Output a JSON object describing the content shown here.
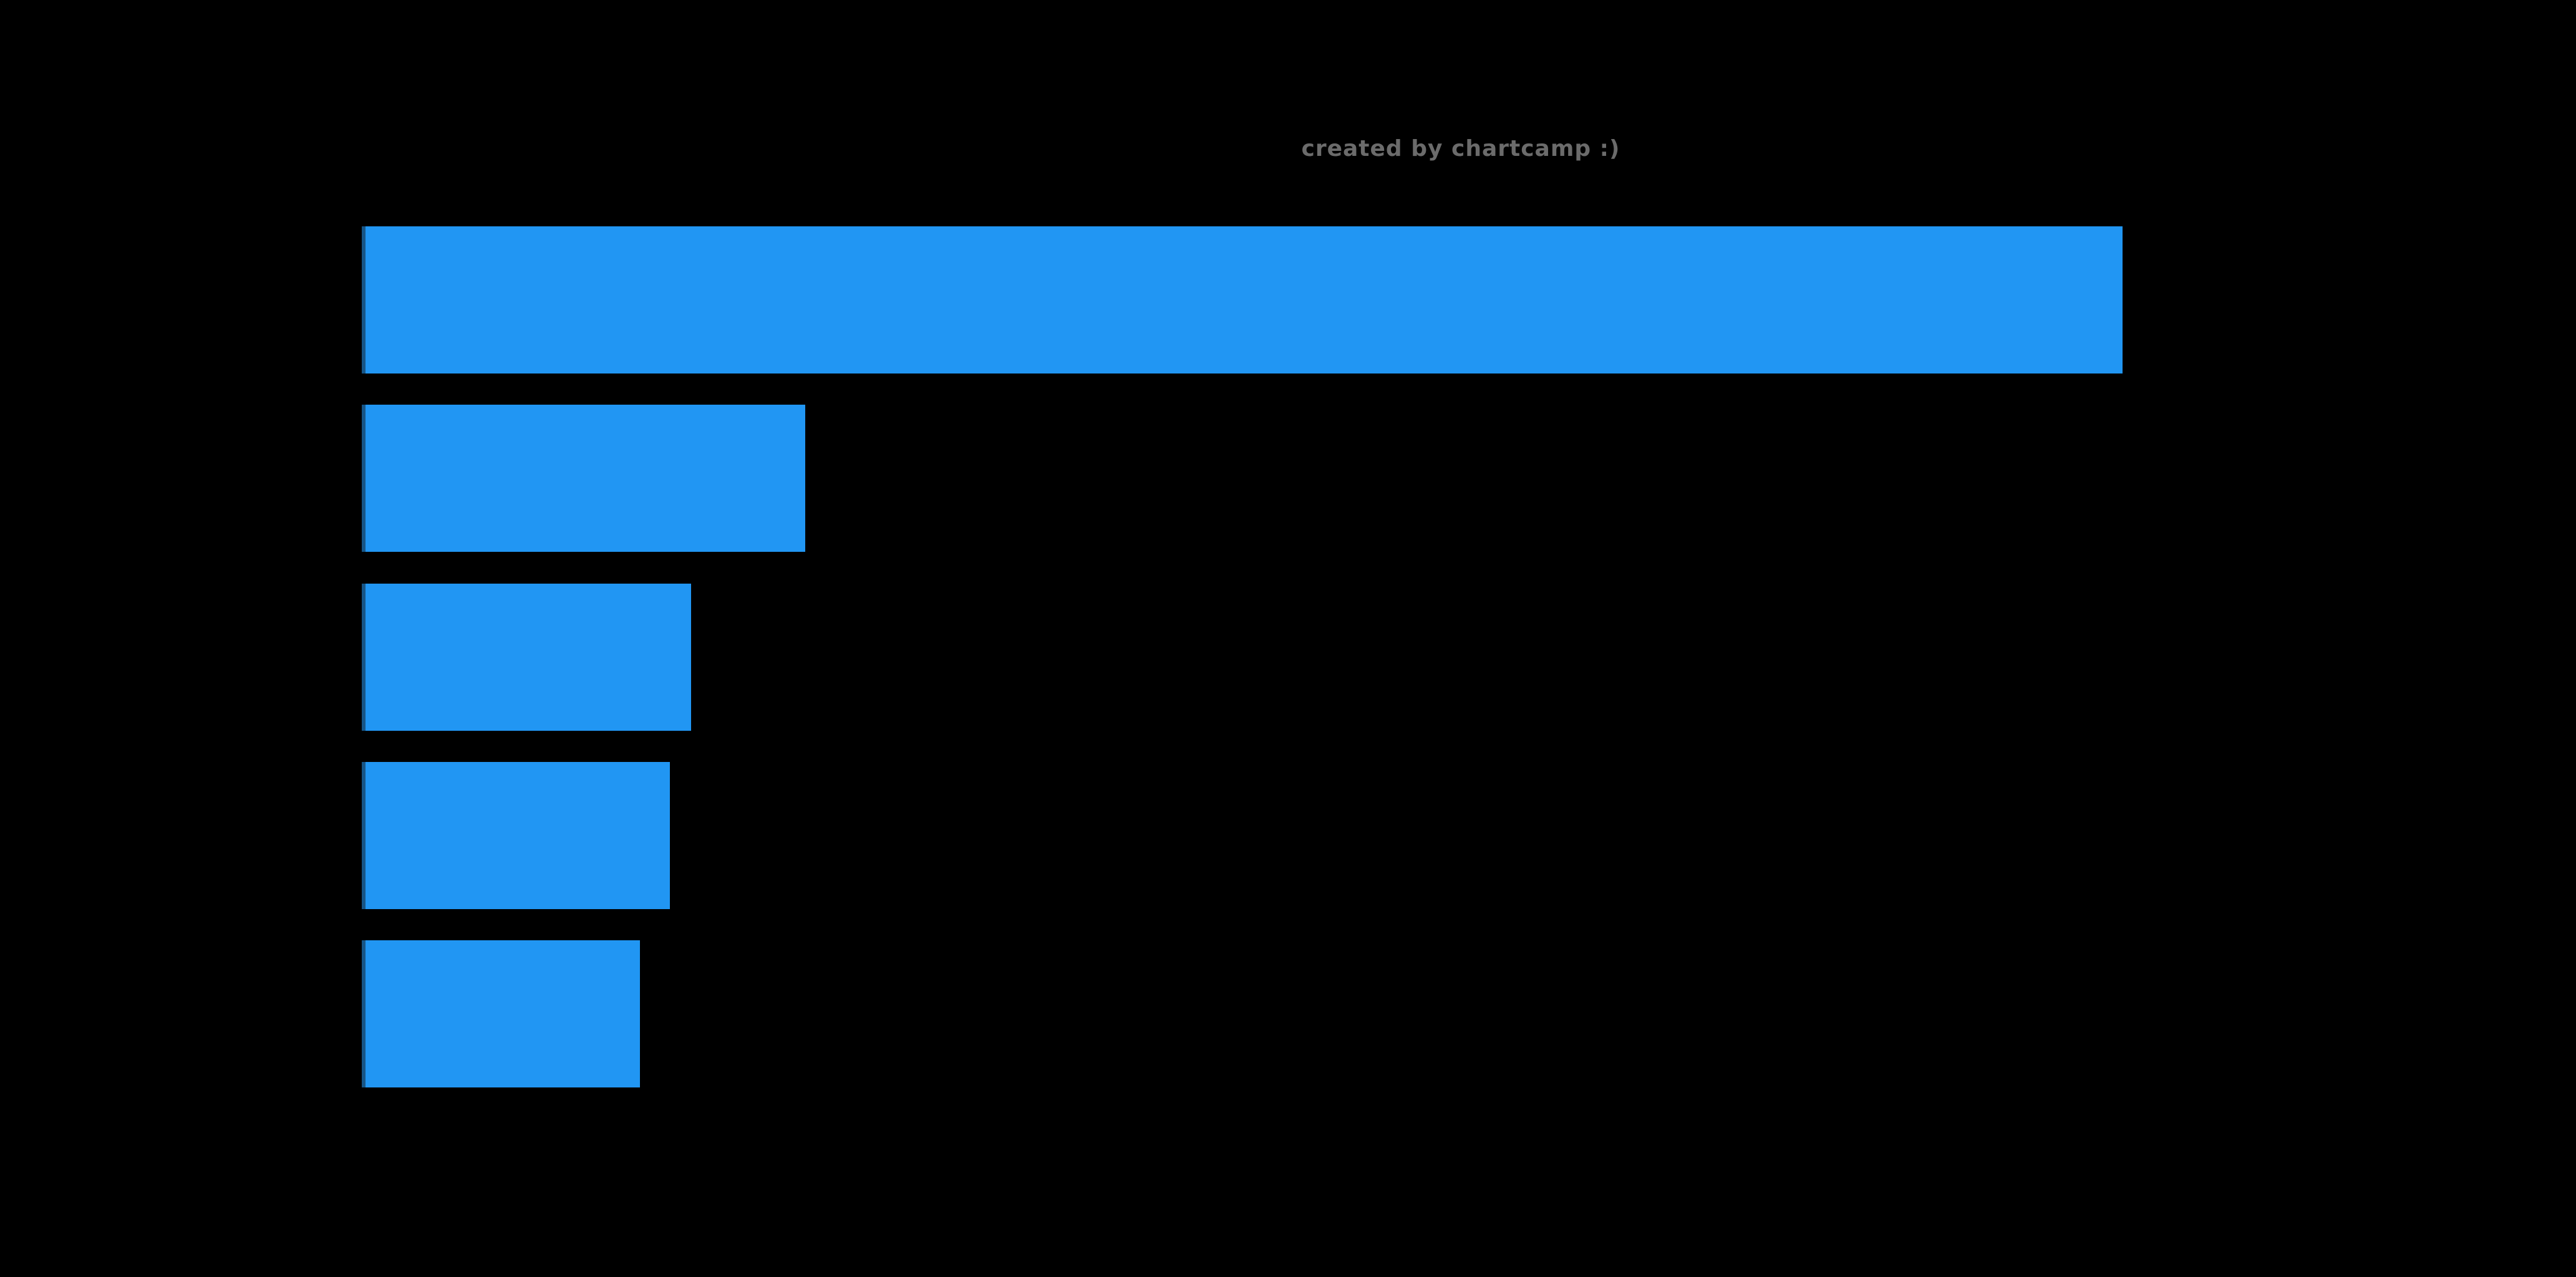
{
  "background_color": "#000000",
  "watermark": {
    "text": "created by chartcamp :)",
    "color": "#6b6b6b"
  },
  "chart_data": {
    "type": "bar",
    "orientation": "horizontal",
    "title": "",
    "xlabel": "",
    "ylabel": "",
    "categories": [
      "",
      "",
      "",
      "",
      ""
    ],
    "values_pct_of_max": [
      100,
      25.2,
      18.7,
      17.5,
      15.8
    ],
    "bar_color": "#2196f3",
    "bar_edge_color": "#175586",
    "bar_count": 5,
    "tick_labels_visible": false,
    "grid": false,
    "legend": null
  }
}
